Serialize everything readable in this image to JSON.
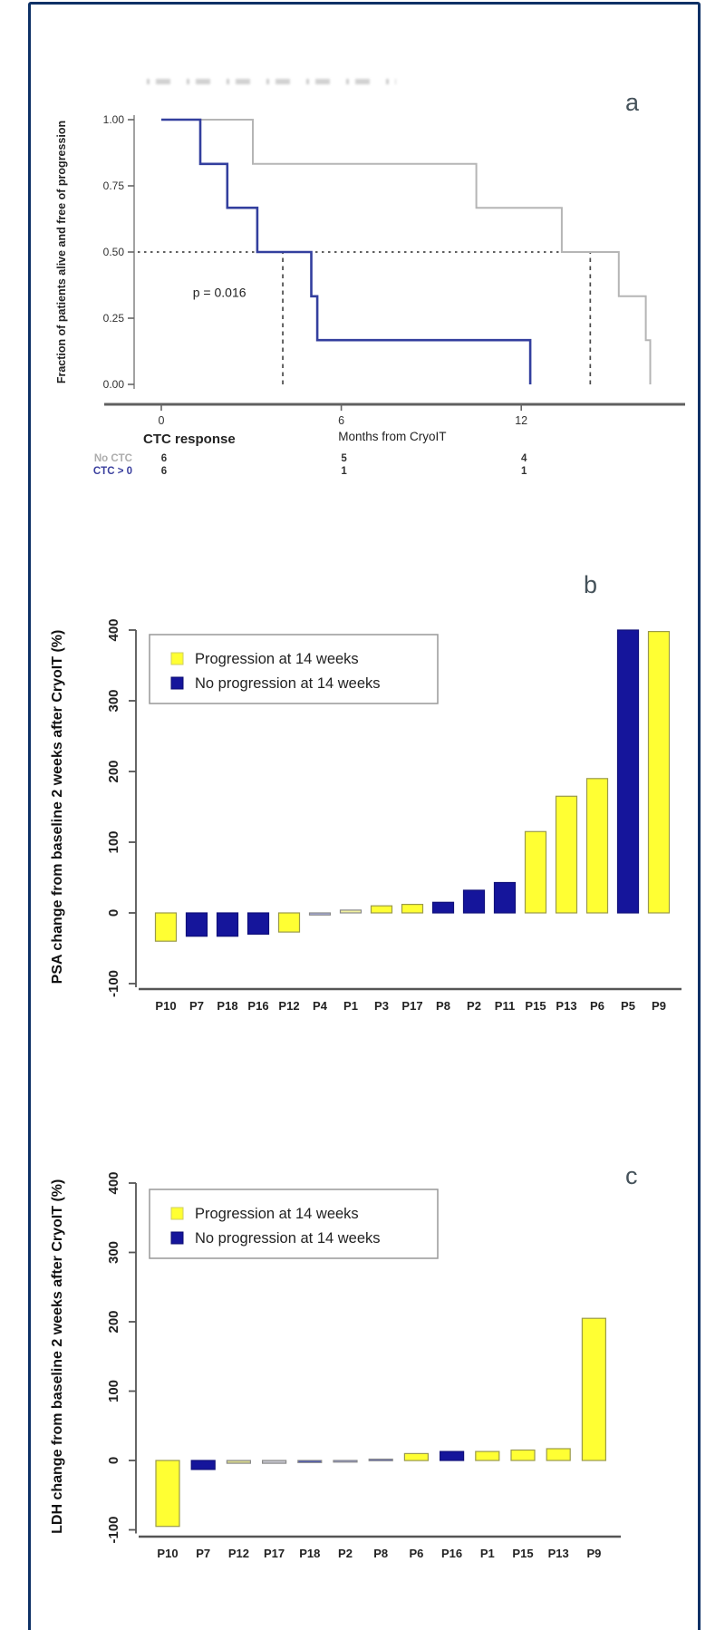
{
  "figure": {
    "border_color": "#0e3166",
    "panel_letters": {
      "a": "a",
      "b": "b",
      "c": "c"
    }
  },
  "chart_data": [
    {
      "type": "line",
      "panel": "a",
      "subtype": "kaplan-meier-step",
      "xlabel": "Months from CryoIT",
      "ylabel": "Fraction of patients alive and free of progression",
      "xticks": [
        0,
        6,
        12
      ],
      "yticks": [
        0.0,
        0.25,
        0.5,
        0.75,
        1.0
      ],
      "xlim": [
        0,
        16.8
      ],
      "ylim": [
        0,
        1
      ],
      "annotation": "p = 0.016",
      "series": [
        {
          "name": "No CTC",
          "color": "#b5b5b5",
          "steps": [
            [
              0,
              1.0
            ],
            [
              3.05,
              1.0
            ],
            [
              3.05,
              0.833
            ],
            [
              10.5,
              0.833
            ],
            [
              10.5,
              0.667
            ],
            [
              13.35,
              0.667
            ],
            [
              13.35,
              0.5
            ],
            [
              15.25,
              0.5
            ],
            [
              15.25,
              0.333
            ],
            [
              16.15,
              0.333
            ],
            [
              16.15,
              0.167
            ],
            [
              16.3,
              0.167
            ],
            [
              16.3,
              0.0
            ]
          ]
        },
        {
          "name": "CTC > 0",
          "color": "#333f9e",
          "steps": [
            [
              0,
              1.0
            ],
            [
              1.3,
              1.0
            ],
            [
              1.3,
              0.833
            ],
            [
              2.2,
              0.833
            ],
            [
              2.2,
              0.667
            ],
            [
              3.2,
              0.667
            ],
            [
              3.2,
              0.5
            ],
            [
              5.0,
              0.5
            ],
            [
              5.0,
              0.333
            ],
            [
              5.2,
              0.333
            ],
            [
              5.2,
              0.167
            ],
            [
              12.3,
              0.167
            ],
            [
              12.3,
              0.0
            ]
          ]
        }
      ],
      "reference_lines": {
        "horizontal": {
          "y": 0.5,
          "x_start": 0,
          "x_end": 14.3
        },
        "vertical": [
          {
            "x": 4.05,
            "y1": 0,
            "y2": 0.5
          },
          {
            "x": 14.3,
            "y1": 0,
            "y2": 0.5
          }
        ]
      },
      "risk_table": {
        "header": "CTC response",
        "times": [
          0,
          6,
          12
        ],
        "rows": [
          {
            "label": "No CTC",
            "color": "#adadad",
            "counts": [
              6,
              5,
              4
            ]
          },
          {
            "label": "CTC > 0",
            "color": "#3a3f9e",
            "counts": [
              6,
              1,
              1
            ]
          }
        ]
      },
      "legend_position": "none",
      "grid": false
    },
    {
      "type": "bar",
      "panel": "b",
      "subtype": "waterfall",
      "ylabel": "PSA change from baseline 2 weeks after CryoIT (%)",
      "yticks": [
        -100,
        0,
        100,
        200,
        300,
        400
      ],
      "ylim": [
        -100,
        400
      ],
      "legend": [
        {
          "key": "progression",
          "label": "Progression at 14 weeks",
          "color": "#ffff33"
        },
        {
          "key": "no_progression",
          "label": "No progression at 14 weeks",
          "color": "#15159b"
        }
      ],
      "legend_position": "upper-left",
      "grid": false,
      "categories": [
        "P10",
        "P7",
        "P18",
        "P16",
        "P12",
        "P4",
        "P1",
        "P3",
        "P17",
        "P8",
        "P2",
        "P11",
        "P15",
        "P13",
        "P6",
        "P5",
        "P9"
      ],
      "bars": [
        {
          "label": "P10",
          "value": -40,
          "group": "progression"
        },
        {
          "label": "P7",
          "value": -33,
          "group": "no_progression"
        },
        {
          "label": "P18",
          "value": -33,
          "group": "no_progression"
        },
        {
          "label": "P16",
          "value": -30,
          "group": "no_progression"
        },
        {
          "label": "P12",
          "value": -27,
          "group": "progression"
        },
        {
          "label": "P4",
          "value": -3,
          "group": "no_progression",
          "fill": "#a9b0e2"
        },
        {
          "label": "P1",
          "value": 4,
          "group": "progression",
          "fill": "#f2f2a0"
        },
        {
          "label": "P3",
          "value": 10,
          "group": "progression"
        },
        {
          "label": "P17",
          "value": 12,
          "group": "progression"
        },
        {
          "label": "P8",
          "value": 15,
          "group": "no_progression"
        },
        {
          "label": "P2",
          "value": 32,
          "group": "no_progression"
        },
        {
          "label": "P11",
          "value": 43,
          "group": "no_progression"
        },
        {
          "label": "P15",
          "value": 115,
          "group": "progression"
        },
        {
          "label": "P13",
          "value": 165,
          "group": "progression"
        },
        {
          "label": "P6",
          "value": 190,
          "group": "progression"
        },
        {
          "label": "P5",
          "value": 400,
          "group": "no_progression"
        },
        {
          "label": "P9",
          "value": 398,
          "group": "progression"
        }
      ]
    },
    {
      "type": "bar",
      "panel": "c",
      "subtype": "waterfall",
      "ylabel": "LDH change from baseline 2 weeks after CryoIT (%)",
      "yticks": [
        -100,
        0,
        100,
        200,
        300,
        400
      ],
      "ylim": [
        -100,
        400
      ],
      "legend": [
        {
          "key": "progression",
          "label": "Progression at 14 weeks",
          "color": "#ffff33"
        },
        {
          "key": "no_progression",
          "label": "No progression at 14 weeks",
          "color": "#15159b"
        }
      ],
      "legend_position": "upper-left",
      "grid": false,
      "categories": [
        "P10",
        "P7",
        "P12",
        "P17",
        "P18",
        "P2",
        "P8",
        "P6",
        "P16",
        "P1",
        "P15",
        "P13",
        "P9"
      ],
      "bars": [
        {
          "label": "P10",
          "value": -95,
          "group": "progression"
        },
        {
          "label": "P7",
          "value": -13,
          "group": "no_progression"
        },
        {
          "label": "P12",
          "value": -4,
          "group": "progression",
          "fill": "#d9d98f"
        },
        {
          "label": "P17",
          "value": -4,
          "group": "progression",
          "fill": "#c7c7cf"
        },
        {
          "label": "P18",
          "value": -3,
          "group": "no_progression",
          "fill": "#3c4cb4"
        },
        {
          "label": "P2",
          "value": -2,
          "group": "no_progression",
          "fill": "#8e96dc"
        },
        {
          "label": "P8",
          "value": 2,
          "group": "no_progression",
          "fill": "#5a64c4"
        },
        {
          "label": "P6",
          "value": 10,
          "group": "progression"
        },
        {
          "label": "P16",
          "value": 13,
          "group": "no_progression"
        },
        {
          "label": "P1",
          "value": 13,
          "group": "progression"
        },
        {
          "label": "P15",
          "value": 15,
          "group": "progression"
        },
        {
          "label": "P13",
          "value": 17,
          "group": "progression"
        },
        {
          "label": "P9",
          "value": 205,
          "group": "progression"
        }
      ]
    }
  ]
}
